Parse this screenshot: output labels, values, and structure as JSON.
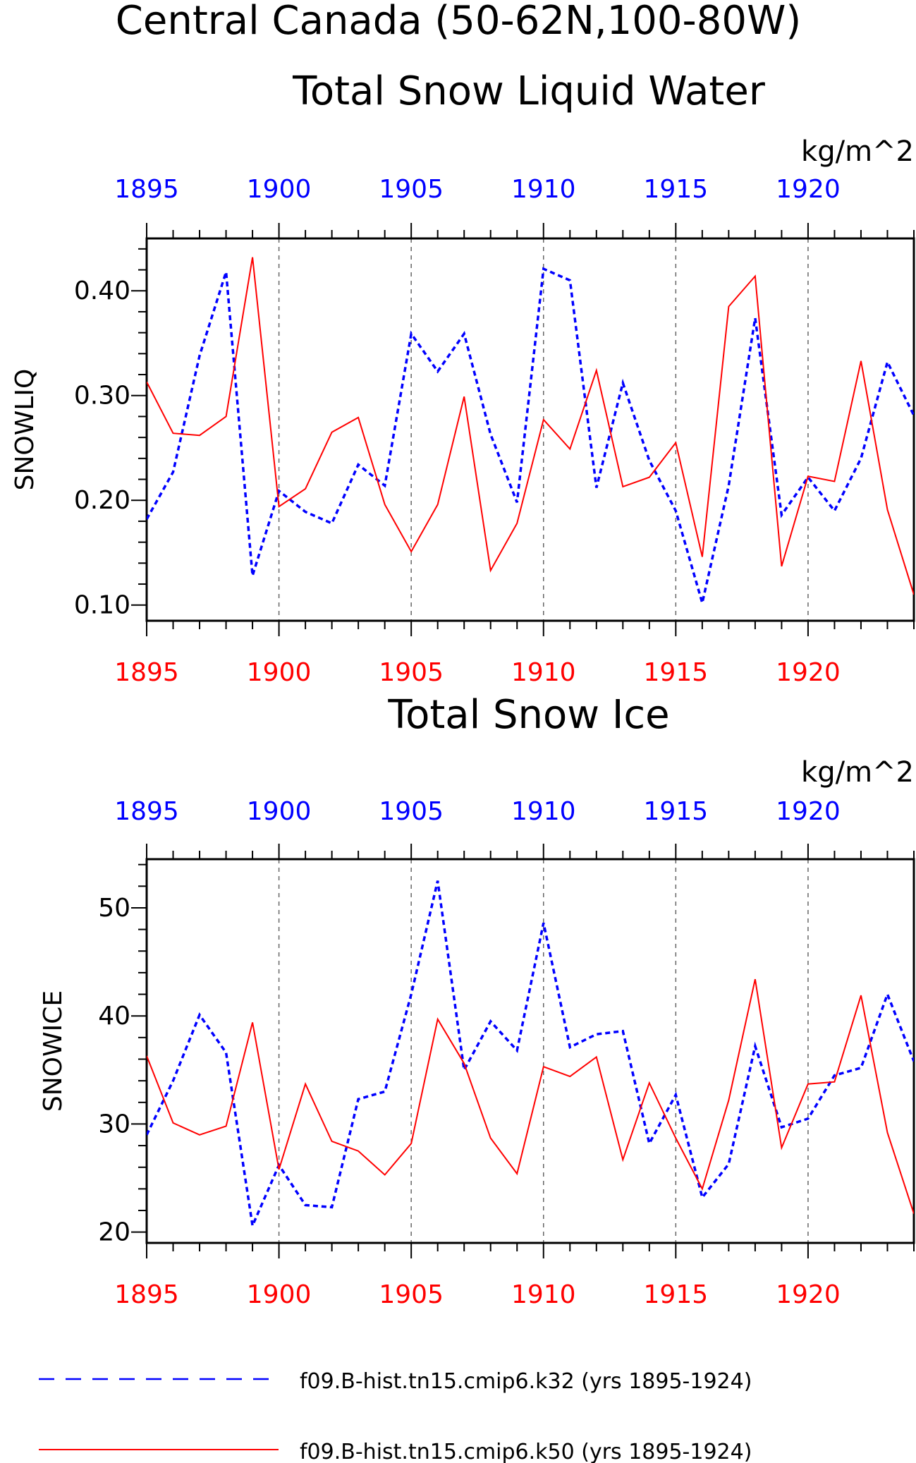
{
  "figure": {
    "title_line1": "Central Canada (50-62N,100-80W)",
    "colors": {
      "k32": "#0000ff",
      "k50": "#ff0000",
      "axis": "#000000",
      "grid": "#666666"
    }
  },
  "legend": {
    "items": [
      {
        "label": "f09.B-hist.tn15.cmip6.k32 (yrs 1895-1924)",
        "color": "#0000ff",
        "style": "dashed"
      },
      {
        "label": "f09.B-hist.tn15.cmip6.k50 (yrs 1895-1924)",
        "color": "#ff0000",
        "style": "solid"
      }
    ]
  },
  "chart_data": [
    {
      "type": "line",
      "title": "Total Snow Liquid Water",
      "units": "kg/m^2",
      "ylabel": "SNOWLIQ",
      "xlim": [
        1895,
        1924
      ],
      "ylim": [
        0.085,
        0.45
      ],
      "yticks": [
        0.1,
        0.2,
        0.3,
        0.4
      ],
      "ytick_labels": [
        "0.10",
        "0.20",
        "0.30",
        "0.40"
      ],
      "xticks": [
        1895,
        1900,
        1905,
        1910,
        1915,
        1920
      ],
      "xtick_labels": [
        "1895",
        "1900",
        "1905",
        "1910",
        "1915",
        "1920"
      ],
      "grid": "vertical dashed at major x ticks",
      "x": [
        1895,
        1896,
        1897,
        1898,
        1899,
        1900,
        1901,
        1902,
        1903,
        1904,
        1905,
        1906,
        1907,
        1908,
        1909,
        1910,
        1911,
        1912,
        1913,
        1914,
        1915,
        1916,
        1917,
        1918,
        1919,
        1920,
        1921,
        1922,
        1923,
        1924
      ],
      "series": [
        {
          "name": "f09.B-hist.tn15.cmip6.k32",
          "color": "#0000ff",
          "style": "dashed",
          "axis_color": "blue-top",
          "values": [
            0.182,
            0.227,
            0.338,
            0.418,
            0.128,
            0.209,
            0.189,
            0.178,
            0.234,
            0.214,
            0.359,
            0.323,
            0.359,
            0.263,
            0.198,
            0.421,
            0.41,
            0.212,
            0.312,
            0.238,
            0.19,
            0.102,
            0.214,
            0.374,
            0.186,
            0.222,
            0.19,
            0.24,
            0.332,
            0.281
          ]
        },
        {
          "name": "f09.B-hist.tn15.cmip6.k50",
          "color": "#ff0000",
          "style": "solid",
          "axis_color": "red-bottom",
          "values": [
            0.313,
            0.264,
            0.262,
            0.28,
            0.432,
            0.194,
            0.211,
            0.265,
            0.279,
            0.196,
            0.151,
            0.196,
            0.299,
            0.133,
            0.178,
            0.277,
            0.249,
            0.324,
            0.213,
            0.222,
            0.255,
            0.146,
            0.385,
            0.414,
            0.137,
            0.223,
            0.218,
            0.333,
            0.191,
            0.11
          ]
        }
      ]
    },
    {
      "type": "line",
      "title": "Total Snow Ice",
      "units": "kg/m^2",
      "ylabel": "SNOWICE",
      "xlim": [
        1895,
        1924
      ],
      "ylim": [
        19,
        54.5
      ],
      "yticks": [
        20,
        30,
        40,
        50
      ],
      "ytick_labels": [
        "20",
        "30",
        "40",
        "50"
      ],
      "xticks": [
        1895,
        1900,
        1905,
        1910,
        1915,
        1920
      ],
      "xtick_labels": [
        "1895",
        "1900",
        "1905",
        "1910",
        "1915",
        "1920"
      ],
      "grid": "vertical dashed at major x ticks",
      "x": [
        1895,
        1896,
        1897,
        1898,
        1899,
        1900,
        1901,
        1902,
        1903,
        1904,
        1905,
        1906,
        1907,
        1908,
        1909,
        1910,
        1911,
        1912,
        1913,
        1914,
        1915,
        1916,
        1917,
        1918,
        1919,
        1920,
        1921,
        1922,
        1923,
        1924
      ],
      "series": [
        {
          "name": "f09.B-hist.tn15.cmip6.k32",
          "color": "#0000ff",
          "style": "dashed",
          "axis_color": "blue-top",
          "values": [
            29.0,
            34.0,
            40.1,
            36.6,
            20.6,
            26.2,
            22.5,
            22.3,
            32.3,
            33.0,
            42.0,
            52.5,
            35.0,
            39.5,
            36.8,
            48.6,
            37.1,
            38.3,
            38.6,
            28.2,
            32.7,
            23.2,
            26.3,
            37.2,
            29.7,
            30.5,
            34.5,
            35.2,
            42.0,
            35.8
          ]
        },
        {
          "name": "f09.B-hist.tn15.cmip6.k50",
          "color": "#ff0000",
          "style": "solid",
          "axis_color": "red-bottom",
          "values": [
            36.3,
            30.1,
            29.0,
            29.8,
            39.4,
            25.8,
            33.7,
            28.4,
            27.5,
            25.3,
            28.2,
            39.7,
            35.6,
            28.7,
            25.4,
            35.3,
            34.4,
            36.2,
            26.7,
            33.8,
            28.7,
            24.0,
            32.2,
            43.4,
            27.8,
            33.7,
            33.9,
            41.9,
            29.2,
            21.7
          ]
        }
      ]
    }
  ]
}
